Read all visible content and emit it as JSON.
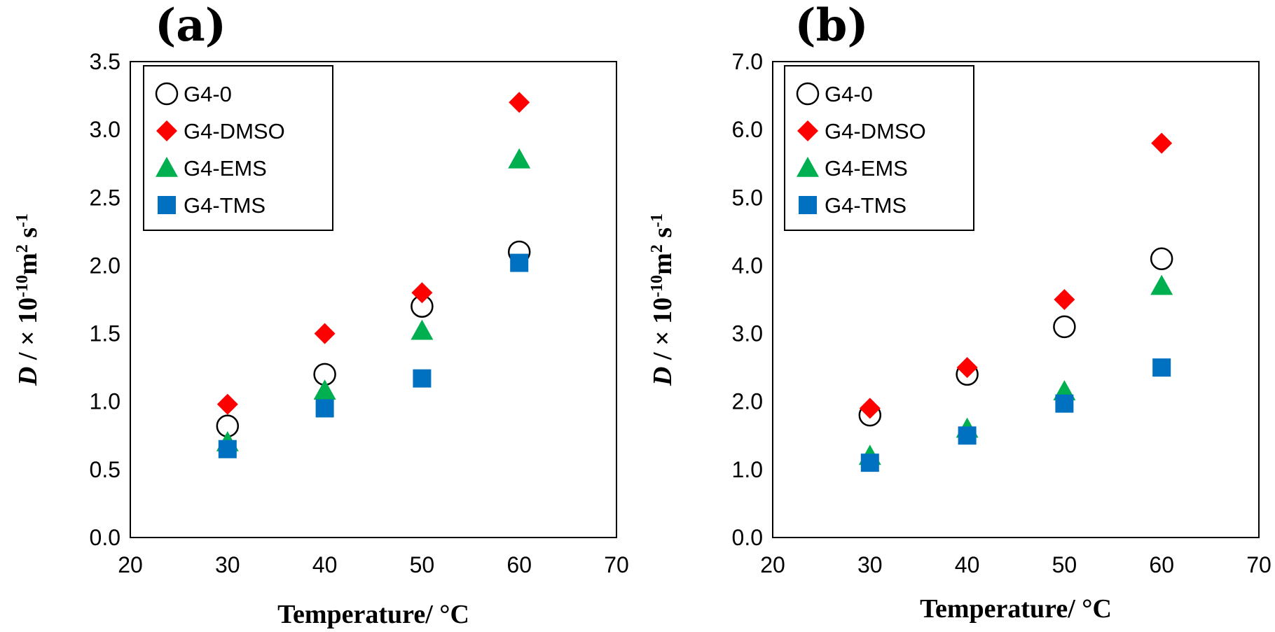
{
  "chart_data": [
    {
      "panel": "(a)",
      "type": "scatter",
      "xlabel": "Temperature/  °C",
      "ylabel": {
        "italic": "D",
        "pre": " / × 10",
        "exp1": "-10",
        "mid": "m",
        "exp2": "2",
        "tail": " s",
        "exp3": "-1"
      },
      "xlim": [
        20,
        70
      ],
      "ylim": [
        0,
        3.5
      ],
      "xticks": [
        "20",
        "30",
        "40",
        "50",
        "60",
        "70"
      ],
      "yticks": [
        "0.0",
        "0.5",
        "1.0",
        "1.5",
        "2.0",
        "2.5",
        "3.0",
        "3.5"
      ],
      "x": [
        30,
        40,
        50,
        60
      ],
      "series": [
        {
          "name": "G4-0",
          "marker": "open-circle",
          "color": "#000000",
          "values": [
            0.82,
            1.2,
            1.7,
            2.1
          ]
        },
        {
          "name": "G4-DMSO",
          "marker": "diamond",
          "color": "#ff0000",
          "values": [
            0.98,
            1.5,
            1.8,
            3.2
          ]
        },
        {
          "name": "G4-EMS",
          "marker": "triangle",
          "color": "#00b050",
          "values": [
            0.7,
            1.08,
            1.52,
            2.78
          ]
        },
        {
          "name": "G4-TMS",
          "marker": "square",
          "color": "#0070c0",
          "values": [
            0.65,
            0.95,
            1.17,
            2.02
          ]
        }
      ],
      "grid": false,
      "legend": "top-left"
    },
    {
      "panel": "(b)",
      "type": "scatter",
      "xlabel": "Temperature/  °C",
      "ylabel": {
        "italic": "D",
        "pre": " / × 10",
        "exp1": "-10",
        "mid": "m",
        "exp2": "2",
        "tail": " s",
        "exp3": "-1"
      },
      "xlim": [
        20,
        70
      ],
      "ylim": [
        0,
        7
      ],
      "xticks": [
        "20",
        "30",
        "40",
        "50",
        "60",
        "70"
      ],
      "yticks": [
        "0.0",
        "1.0",
        "2.0",
        "3.0",
        "4.0",
        "5.0",
        "6.0",
        "7.0"
      ],
      "x": [
        30,
        40,
        50,
        60
      ],
      "series": [
        {
          "name": "G4-0",
          "marker": "open-circle",
          "color": "#000000",
          "values": [
            1.8,
            2.4,
            3.1,
            4.1
          ]
        },
        {
          "name": "G4-DMSO",
          "marker": "diamond",
          "color": "#ff0000",
          "values": [
            1.9,
            2.5,
            3.5,
            5.8
          ]
        },
        {
          "name": "G4-EMS",
          "marker": "triangle",
          "color": "#00b050",
          "values": [
            1.2,
            1.6,
            2.15,
            3.7
          ]
        },
        {
          "name": "G4-TMS",
          "marker": "square",
          "color": "#0070c0",
          "values": [
            1.1,
            1.5,
            1.97,
            2.5
          ]
        }
      ],
      "grid": false,
      "legend": "top-left"
    }
  ]
}
